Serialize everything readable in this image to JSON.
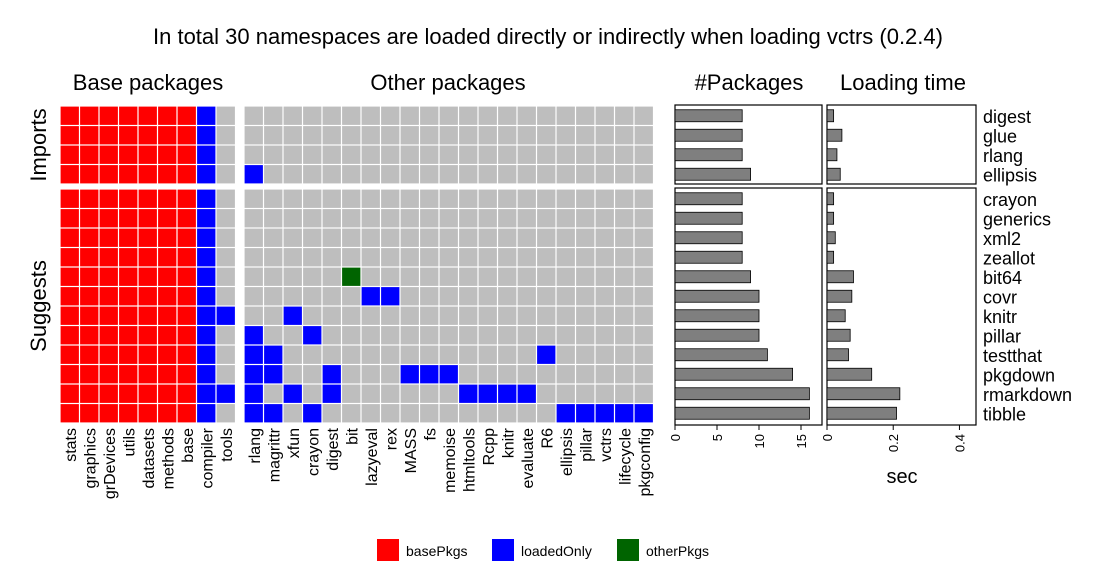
{
  "title": "In total 30 namespaces are loaded directly or indirectly when loading vctrs (0.2.4)",
  "colors": {
    "basePkgs": "#ff0000",
    "loadedOnly": "#0000ff",
    "otherPkgs": "#006400",
    "empty": "#bebebe",
    "bar": "#7f7f7f"
  },
  "chart_data": [
    {
      "type": "heatmap",
      "title": "Base packages",
      "columns": [
        "stats",
        "graphics",
        "grDevices",
        "utils",
        "datasets",
        "methods",
        "base",
        "compiler",
        "tools"
      ]
    },
    {
      "type": "heatmap",
      "title": "Other packages",
      "columns": [
        "rlang",
        "magrittr",
        "xfun",
        "crayon",
        "digest",
        "bit",
        "lazyeval",
        "rex",
        "MASS",
        "fs",
        "memoise",
        "htmltools",
        "Rcpp",
        "knitr",
        "evaluate",
        "R6",
        "ellipsis",
        "pillar",
        "vctrs",
        "lifecycle",
        "pkgconfig"
      ]
    },
    {
      "type": "bar",
      "title": "#Packages",
      "xlabel": "",
      "ticks": [
        "0",
        "5",
        "10",
        "15"
      ],
      "xlim": [
        0,
        17.5
      ],
      "series": [
        {
          "values": [
            8,
            8,
            8,
            9,
            8,
            8,
            8,
            8,
            9,
            10,
            10,
            10,
            11,
            14,
            16,
            16
          ]
        }
      ]
    },
    {
      "type": "bar",
      "title": "Loading time",
      "xlabel": "sec",
      "ticks": [
        "0",
        "0.2",
        "0.4"
      ],
      "xlim": [
        0,
        0.45
      ],
      "series": [
        {
          "values": [
            0.02,
            0.045,
            0.03,
            0.04,
            0.02,
            0.02,
            0.025,
            0.02,
            0.08,
            0.075,
            0.055,
            0.07,
            0.065,
            0.135,
            0.22,
            0.21
          ]
        }
      ]
    }
  ],
  "groups": [
    {
      "label": "Imports",
      "rows": [
        "digest",
        "glue",
        "rlang",
        "ellipsis"
      ]
    },
    {
      "label": "Suggests",
      "rows": [
        "crayon",
        "generics",
        "xml2",
        "zeallot",
        "bit64",
        "covr",
        "knitr",
        "pillar",
        "testthat",
        "pkgdown",
        "rmarkdown",
        "tibble"
      ]
    }
  ],
  "matrix": {
    "base": [
      "RRRRRRRB.",
      "RRRRRRRB.",
      "RRRRRRRB.",
      "RRRRRRRB.",
      "RRRRRRRB.",
      "RRRRRRRB.",
      "RRRRRRRB.",
      "RRRRRRRB.",
      "RRRRRRRB.",
      "RRRRRRRB.",
      "RRRRRRRBB",
      "RRRRRRRB.",
      "RRRRRRRB.",
      "RRRRRRRB.",
      "RRRRRRRBB",
      "RRRRRRRB."
    ],
    "other": [
      ".....................",
      ".....................",
      ".....................",
      "B....................",
      ".....................",
      ".....................",
      ".....................",
      ".....................",
      ".....G...............",
      "......BB.............",
      "..B..................",
      "B..B.................",
      "BB.............B.....",
      "BB..B...BBB..........",
      "B.B.B......BBBB......",
      "BB.B............BBBBB"
    ]
  },
  "legend": [
    {
      "key": "basePkgs",
      "label": "basePkgs"
    },
    {
      "key": "loadedOnly",
      "label": "loadedOnly"
    },
    {
      "key": "otherPkgs",
      "label": "otherPkgs"
    }
  ]
}
